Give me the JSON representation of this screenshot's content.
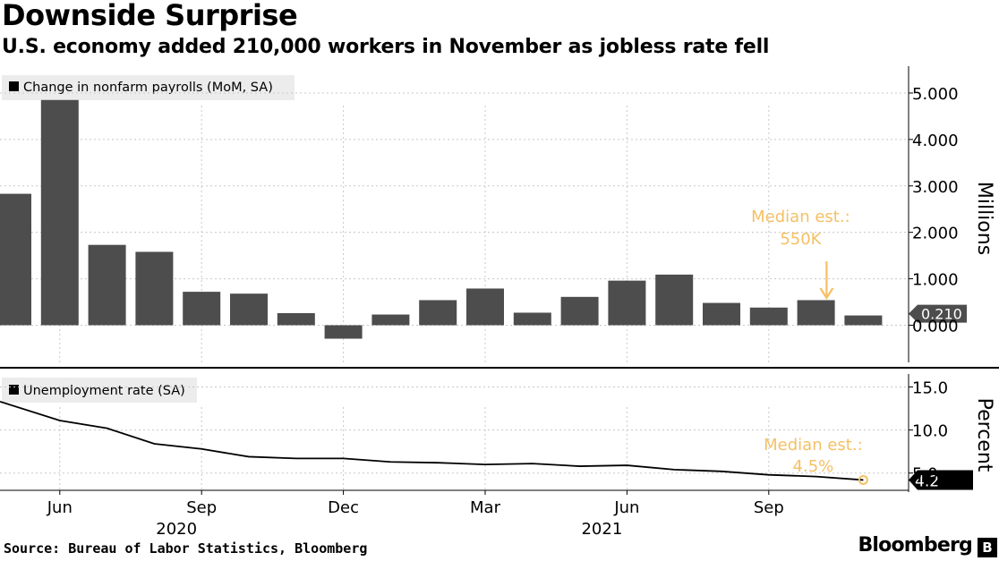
{
  "title": "Downside Surprise",
  "subtitle": "U.S. economy added 210,000 workers in November as jobless rate fell",
  "source": "Source: Bureau of Labor Statistics, Bloomberg",
  "logo": "Bloomberg",
  "colors": {
    "bar": "#4d4d4d",
    "line": "#000000",
    "annotation": "#f5c065",
    "grid": "#c8c8c8"
  },
  "chart_data": [
    {
      "type": "bar",
      "legend": "Change in nonfarm payrolls (MoM, SA)",
      "ylabel": "Millions",
      "ylim": [
        -0.8,
        5.5
      ],
      "yticks": [
        0,
        1,
        2,
        3,
        4,
        5
      ],
      "ytick_labels": [
        "0.000",
        "1.000",
        "2.000",
        "3.000",
        "4.000",
        "5.000"
      ],
      "categories": [
        "2020-05",
        "2020-06",
        "2020-07",
        "2020-08",
        "2020-09",
        "2020-10",
        "2020-11",
        "2020-12",
        "2021-01",
        "2021-02",
        "2021-03",
        "2021-04",
        "2021-05",
        "2021-06",
        "2021-07",
        "2021-08",
        "2021-09",
        "2021-10",
        "2021-11"
      ],
      "values": [
        2.83,
        4.85,
        1.73,
        1.58,
        0.72,
        0.68,
        0.26,
        -0.29,
        0.23,
        0.54,
        0.79,
        0.27,
        0.61,
        0.96,
        1.09,
        0.48,
        0.38,
        0.54,
        0.21
      ],
      "last_value_label": "0.210",
      "annotation": {
        "line1": "Median est.:",
        "line2": "550K"
      }
    },
    {
      "type": "line",
      "legend": "Unemployment rate (SA)",
      "ylabel": "Percent",
      "ylim": [
        3.0,
        16.5
      ],
      "yticks": [
        5,
        10,
        15
      ],
      "ytick_labels": [
        "5.0",
        "10.0",
        "15.0"
      ],
      "x": [
        "2020-05",
        "2020-06",
        "2020-07",
        "2020-08",
        "2020-09",
        "2020-10",
        "2020-11",
        "2020-12",
        "2021-01",
        "2021-02",
        "2021-03",
        "2021-04",
        "2021-05",
        "2021-06",
        "2021-07",
        "2021-08",
        "2021-09",
        "2021-10",
        "2021-11"
      ],
      "values": [
        13.3,
        11.1,
        10.2,
        8.4,
        7.8,
        6.9,
        6.7,
        6.7,
        6.3,
        6.2,
        6.0,
        6.1,
        5.8,
        5.9,
        5.4,
        5.2,
        4.8,
        4.6,
        4.2
      ],
      "last_value_label": "4.2",
      "annotation": {
        "line1": "Median est.:",
        "line2": "4.5%"
      }
    }
  ],
  "x_axis": {
    "month_ticks": [
      {
        "at": "2020-06",
        "label": "Jun"
      },
      {
        "at": "2020-09",
        "label": "Sep"
      },
      {
        "at": "2020-12",
        "label": "Dec"
      },
      {
        "at": "2021-03",
        "label": "Mar"
      },
      {
        "at": "2021-06",
        "label": "Jun"
      },
      {
        "at": "2021-09",
        "label": "Sep"
      }
    ],
    "year_labels": [
      {
        "at": "2020-09",
        "label": "2020"
      },
      {
        "at": "2021-06",
        "label": "2021"
      }
    ]
  }
}
